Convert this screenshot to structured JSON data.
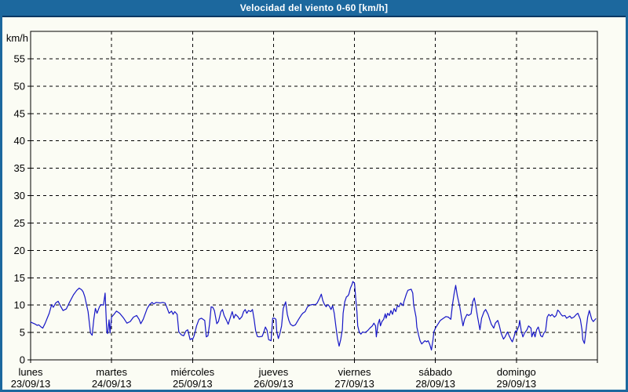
{
  "window": {
    "title": "Velocidad del viento 0-60 [km/h]"
  },
  "colors": {
    "titlebar_bg": "#1c689e",
    "titlebar_border": "#0a3864",
    "page_border": "#1c689e",
    "background": "#fbfcf4",
    "axis": "#000000",
    "grid": "#000000",
    "text": "#000000",
    "line": "#1616c6"
  },
  "chart_data": {
    "type": "line",
    "title": "Velocidad del viento 0-60 [km/h]",
    "ylabel": "km/h",
    "xlabel": "",
    "ylim": [
      0,
      60
    ],
    "y_ticks": [
      0,
      5,
      10,
      15,
      20,
      25,
      30,
      35,
      40,
      45,
      50,
      55
    ],
    "grid": "dashed",
    "legend": "none",
    "x_days": [
      {
        "name": "lunes",
        "date": "23/09/13"
      },
      {
        "name": "martes",
        "date": "24/09/13"
      },
      {
        "name": "miércoles",
        "date": "25/09/13"
      },
      {
        "name": "jueves",
        "date": "26/09/13"
      },
      {
        "name": "viernes",
        "date": "27/09/13"
      },
      {
        "name": "sábado",
        "date": "28/09/13"
      },
      {
        "name": "domingo",
        "date": "29/09/13"
      }
    ],
    "series": [
      {
        "name": "velocidad del viento (km/h)",
        "points": [
          [
            0.0,
            6.9
          ],
          [
            0.03,
            6.7
          ],
          [
            0.06,
            6.5
          ],
          [
            0.08,
            6.3
          ],
          [
            0.1,
            6.4
          ],
          [
            0.13,
            6.0
          ],
          [
            0.15,
            5.8
          ],
          [
            0.18,
            6.7
          ],
          [
            0.21,
            7.8
          ],
          [
            0.23,
            8.5
          ],
          [
            0.26,
            10.1
          ],
          [
            0.28,
            9.6
          ],
          [
            0.31,
            10.4
          ],
          [
            0.34,
            10.7
          ],
          [
            0.37,
            9.8
          ],
          [
            0.4,
            9.0
          ],
          [
            0.44,
            9.3
          ],
          [
            0.48,
            10.5
          ],
          [
            0.53,
            11.9
          ],
          [
            0.57,
            12.7
          ],
          [
            0.6,
            13.1
          ],
          [
            0.63,
            12.8
          ],
          [
            0.65,
            12.4
          ],
          [
            0.67,
            11.5
          ],
          [
            0.69,
            10.1
          ],
          [
            0.71,
            8.8
          ],
          [
            0.74,
            4.9
          ],
          [
            0.76,
            4.5
          ],
          [
            0.78,
            7.4
          ],
          [
            0.8,
            9.4
          ],
          [
            0.82,
            8.5
          ],
          [
            0.85,
            9.7
          ],
          [
            0.87,
            10.1
          ],
          [
            0.9,
            10.0
          ],
          [
            0.92,
            12.2
          ],
          [
            0.94,
            5.2
          ],
          [
            0.95,
            4.8
          ],
          [
            0.97,
            7.3
          ],
          [
            0.98,
            4.9
          ],
          [
            1.0,
            7.8
          ],
          [
            1.03,
            8.3
          ],
          [
            1.06,
            8.9
          ],
          [
            1.1,
            8.5
          ],
          [
            1.15,
            7.6
          ],
          [
            1.19,
            6.7
          ],
          [
            1.23,
            7.0
          ],
          [
            1.27,
            7.8
          ],
          [
            1.31,
            8.1
          ],
          [
            1.34,
            7.4
          ],
          [
            1.36,
            6.6
          ],
          [
            1.39,
            7.4
          ],
          [
            1.44,
            9.4
          ],
          [
            1.47,
            10.1
          ],
          [
            1.5,
            10.5
          ],
          [
            1.52,
            10.2
          ],
          [
            1.55,
            10.5
          ],
          [
            1.6,
            10.4
          ],
          [
            1.63,
            10.5
          ],
          [
            1.66,
            10.4
          ],
          [
            1.68,
            9.7
          ],
          [
            1.71,
            8.5
          ],
          [
            1.74,
            8.9
          ],
          [
            1.76,
            8.3
          ],
          [
            1.78,
            8.8
          ],
          [
            1.81,
            8.3
          ],
          [
            1.83,
            5.1
          ],
          [
            1.86,
            4.6
          ],
          [
            1.89,
            4.4
          ],
          [
            1.92,
            5.3
          ],
          [
            1.94,
            5.5
          ],
          [
            1.97,
            3.7
          ],
          [
            1.99,
            3.9
          ],
          [
            2.0,
            3.7
          ],
          [
            2.02,
            4.4
          ],
          [
            2.05,
            6.2
          ],
          [
            2.08,
            7.4
          ],
          [
            2.11,
            7.6
          ],
          [
            2.15,
            7.2
          ],
          [
            2.17,
            4.2
          ],
          [
            2.19,
            4.4
          ],
          [
            2.21,
            6.5
          ],
          [
            2.23,
            9.7
          ],
          [
            2.25,
            9.6
          ],
          [
            2.27,
            9.0
          ],
          [
            2.3,
            6.6
          ],
          [
            2.32,
            7.0
          ],
          [
            2.35,
            8.8
          ],
          [
            2.37,
            9.2
          ],
          [
            2.39,
            8.1
          ],
          [
            2.42,
            7.2
          ],
          [
            2.44,
            6.5
          ],
          [
            2.47,
            7.9
          ],
          [
            2.49,
            8.8
          ],
          [
            2.51,
            7.6
          ],
          [
            2.53,
            8.3
          ],
          [
            2.56,
            7.9
          ],
          [
            2.58,
            7.4
          ],
          [
            2.61,
            7.9
          ],
          [
            2.63,
            8.8
          ],
          [
            2.65,
            9.2
          ],
          [
            2.67,
            8.5
          ],
          [
            2.69,
            9.0
          ],
          [
            2.72,
            8.8
          ],
          [
            2.74,
            9.2
          ],
          [
            2.76,
            7.4
          ],
          [
            2.78,
            5.3
          ],
          [
            2.8,
            4.3
          ],
          [
            2.82,
            4.2
          ],
          [
            2.86,
            4.3
          ],
          [
            2.88,
            5.1
          ],
          [
            2.9,
            6.0
          ],
          [
            2.92,
            5.4
          ],
          [
            2.94,
            3.7
          ],
          [
            2.97,
            3.5
          ],
          [
            2.99,
            7.6
          ],
          [
            3.01,
            7.6
          ],
          [
            3.03,
            7.4
          ],
          [
            3.04,
            5.1
          ],
          [
            3.06,
            3.9
          ],
          [
            3.08,
            4.9
          ],
          [
            3.1,
            6.2
          ],
          [
            3.12,
            9.4
          ],
          [
            3.15,
            10.6
          ],
          [
            3.17,
            8.3
          ],
          [
            3.19,
            7.2
          ],
          [
            3.21,
            6.5
          ],
          [
            3.24,
            6.2
          ],
          [
            3.27,
            6.4
          ],
          [
            3.31,
            7.4
          ],
          [
            3.34,
            8.1
          ],
          [
            3.36,
            8.5
          ],
          [
            3.39,
            8.8
          ],
          [
            3.42,
            9.7
          ],
          [
            3.45,
            10.0
          ],
          [
            3.48,
            10.1
          ],
          [
            3.52,
            10.1
          ],
          [
            3.54,
            10.4
          ],
          [
            3.57,
            11.3
          ],
          [
            3.59,
            12.0
          ],
          [
            3.61,
            10.8
          ],
          [
            3.63,
            10.1
          ],
          [
            3.65,
            9.7
          ],
          [
            3.67,
            10.1
          ],
          [
            3.69,
            9.8
          ],
          [
            3.71,
            9.2
          ],
          [
            3.73,
            9.9
          ],
          [
            3.75,
            8.5
          ],
          [
            3.77,
            6.2
          ],
          [
            3.79,
            3.9
          ],
          [
            3.81,
            2.5
          ],
          [
            3.83,
            3.7
          ],
          [
            3.85,
            5.5
          ],
          [
            3.86,
            8.5
          ],
          [
            3.88,
            10.6
          ],
          [
            3.9,
            11.5
          ],
          [
            3.92,
            11.7
          ],
          [
            3.93,
            12.0
          ],
          [
            3.95,
            13.1
          ],
          [
            3.97,
            13.8
          ],
          [
            3.98,
            14.3
          ],
          [
            4.0,
            14.0
          ],
          [
            4.02,
            10.5
          ],
          [
            4.03,
            8.8
          ],
          [
            4.04,
            6.2
          ],
          [
            4.06,
            5.0
          ],
          [
            4.08,
            4.7
          ],
          [
            4.1,
            5.1
          ],
          [
            4.13,
            5.0
          ],
          [
            4.16,
            5.3
          ],
          [
            4.19,
            5.8
          ],
          [
            4.22,
            6.2
          ],
          [
            4.24,
            6.7
          ],
          [
            4.26,
            6.2
          ],
          [
            4.27,
            4.2
          ],
          [
            4.29,
            6.5
          ],
          [
            4.31,
            7.4
          ],
          [
            4.32,
            6.2
          ],
          [
            4.34,
            7.0
          ],
          [
            4.36,
            7.4
          ],
          [
            4.38,
            8.4
          ],
          [
            4.39,
            7.6
          ],
          [
            4.41,
            8.5
          ],
          [
            4.43,
            8.1
          ],
          [
            4.45,
            9.0
          ],
          [
            4.47,
            8.3
          ],
          [
            4.49,
            9.4
          ],
          [
            4.51,
            8.8
          ],
          [
            4.53,
            9.9
          ],
          [
            4.55,
            9.7
          ],
          [
            4.57,
            10.4
          ],
          [
            4.6,
            9.9
          ],
          [
            4.61,
            10.6
          ],
          [
            4.64,
            12.0
          ],
          [
            4.66,
            12.7
          ],
          [
            4.68,
            12.8
          ],
          [
            4.7,
            12.9
          ],
          [
            4.72,
            12.2
          ],
          [
            4.73,
            10.1
          ],
          [
            4.76,
            7.8
          ],
          [
            4.77,
            6.0
          ],
          [
            4.79,
            4.6
          ],
          [
            4.81,
            3.5
          ],
          [
            4.83,
            2.9
          ],
          [
            4.85,
            3.2
          ],
          [
            4.87,
            3.5
          ],
          [
            4.89,
            3.3
          ],
          [
            4.91,
            3.5
          ],
          [
            4.93,
            2.8
          ],
          [
            4.95,
            1.8
          ],
          [
            4.97,
            3.7
          ],
          [
            4.98,
            5.1
          ],
          [
            5.0,
            5.8
          ],
          [
            5.03,
            6.5
          ],
          [
            5.06,
            7.2
          ],
          [
            5.1,
            7.6
          ],
          [
            5.13,
            7.9
          ],
          [
            5.16,
            7.8
          ],
          [
            5.19,
            7.4
          ],
          [
            5.21,
            10.1
          ],
          [
            5.23,
            12.0
          ],
          [
            5.25,
            13.6
          ],
          [
            5.27,
            11.7
          ],
          [
            5.3,
            9.7
          ],
          [
            5.32,
            7.9
          ],
          [
            5.34,
            6.2
          ],
          [
            5.36,
            7.4
          ],
          [
            5.39,
            8.3
          ],
          [
            5.41,
            8.1
          ],
          [
            5.44,
            8.4
          ],
          [
            5.46,
            10.6
          ],
          [
            5.48,
            11.3
          ],
          [
            5.5,
            9.7
          ],
          [
            5.52,
            7.9
          ],
          [
            5.55,
            5.5
          ],
          [
            5.57,
            7.6
          ],
          [
            5.6,
            8.8
          ],
          [
            5.62,
            9.2
          ],
          [
            5.65,
            8.3
          ],
          [
            5.67,
            7.4
          ],
          [
            5.69,
            6.5
          ],
          [
            5.72,
            5.8
          ],
          [
            5.74,
            6.7
          ],
          [
            5.77,
            7.2
          ],
          [
            5.79,
            6.2
          ],
          [
            5.81,
            4.9
          ],
          [
            5.84,
            3.8
          ],
          [
            5.86,
            4.2
          ],
          [
            5.89,
            5.1
          ],
          [
            5.91,
            4.4
          ],
          [
            5.94,
            3.5
          ],
          [
            5.95,
            3.3
          ],
          [
            5.97,
            4.2
          ],
          [
            5.99,
            5.3
          ],
          [
            6.0,
            5.1
          ],
          [
            6.03,
            6.2
          ],
          [
            6.04,
            7.2
          ],
          [
            6.06,
            5.3
          ],
          [
            6.08,
            4.2
          ],
          [
            6.1,
            4.9
          ],
          [
            6.13,
            5.5
          ],
          [
            6.15,
            6.2
          ],
          [
            6.18,
            5.8
          ],
          [
            6.19,
            4.2
          ],
          [
            6.21,
            5.1
          ],
          [
            6.23,
            4.2
          ],
          [
            6.25,
            5.5
          ],
          [
            6.27,
            6.0
          ],
          [
            6.3,
            4.4
          ],
          [
            6.32,
            4.2
          ],
          [
            6.34,
            4.9
          ],
          [
            6.36,
            5.3
          ],
          [
            6.38,
            7.8
          ],
          [
            6.4,
            8.3
          ],
          [
            6.42,
            8.0
          ],
          [
            6.44,
            8.3
          ],
          [
            6.47,
            7.8
          ],
          [
            6.49,
            8.1
          ],
          [
            6.51,
            9.1
          ],
          [
            6.53,
            8.8
          ],
          [
            6.55,
            8.3
          ],
          [
            6.57,
            8.0
          ],
          [
            6.6,
            8.1
          ],
          [
            6.62,
            7.6
          ],
          [
            6.64,
            7.8
          ],
          [
            6.66,
            8.0
          ],
          [
            6.68,
            7.6
          ],
          [
            6.71,
            7.8
          ],
          [
            6.74,
            8.3
          ],
          [
            6.76,
            8.5
          ],
          [
            6.77,
            8.1
          ],
          [
            6.79,
            7.4
          ],
          [
            6.81,
            5.5
          ],
          [
            6.82,
            3.7
          ],
          [
            6.84,
            3.0
          ],
          [
            6.86,
            5.5
          ],
          [
            6.88,
            7.8
          ],
          [
            6.9,
            9.0
          ],
          [
            6.91,
            8.5
          ],
          [
            6.93,
            7.4
          ],
          [
            6.95,
            7.0
          ],
          [
            6.98,
            7.5
          ]
        ]
      }
    ]
  }
}
